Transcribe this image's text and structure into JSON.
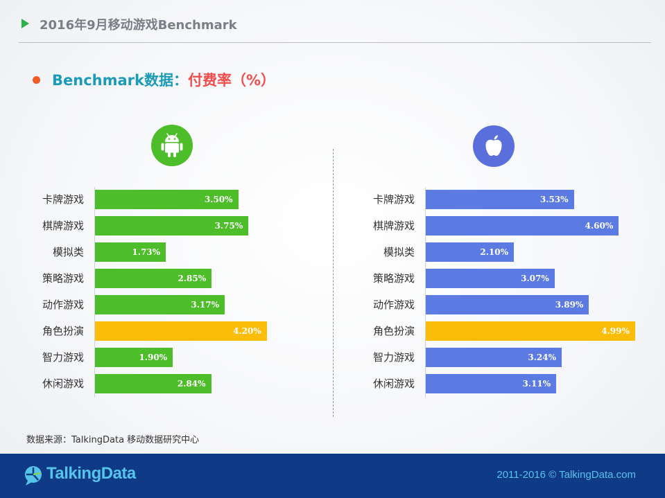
{
  "header": {
    "title": "2016年9月移动游戏Benchmark"
  },
  "subtitle": {
    "part1": "Benchmark数据：",
    "part2": "付费率（%）"
  },
  "icons": {
    "android": "android-icon",
    "apple": "apple-icon"
  },
  "chart_data": [
    {
      "type": "bar",
      "orientation": "horizontal",
      "platform_icon": "android",
      "categories": [
        "卡牌游戏",
        "棋牌游戏",
        "模拟类",
        "策略游戏",
        "动作游戏",
        "角色扮演",
        "智力游戏",
        "休闲游戏"
      ],
      "values": [
        3.5,
        3.75,
        1.73,
        2.85,
        3.17,
        4.2,
        1.9,
        2.84
      ],
      "labels": [
        "3.50%",
        "3.75%",
        "1.73%",
        "2.85%",
        "3.17%",
        "4.20%",
        "1.90%",
        "2.84%"
      ],
      "colors": {
        "default": "#4ebd2a",
        "highlight": "#fbbd08"
      },
      "highlight_index": 5
    },
    {
      "type": "bar",
      "orientation": "horizontal",
      "platform_icon": "apple",
      "categories": [
        "卡牌游戏",
        "棋牌游戏",
        "模拟类",
        "策略游戏",
        "动作游戏",
        "角色扮演",
        "智力游戏",
        "休闲游戏"
      ],
      "values": [
        3.53,
        4.6,
        2.1,
        3.07,
        3.89,
        4.99,
        3.24,
        3.11
      ],
      "labels": [
        "3.53%",
        "4.60%",
        "2.10%",
        "3.07%",
        "3.89%",
        "4.99%",
        "3.24%",
        "3.11%"
      ],
      "colors": {
        "default": "#5b7be3",
        "highlight": "#fbbd08"
      },
      "highlight_index": 5
    }
  ],
  "source": "数据来源：TalkingData 移动数据研究中心",
  "footer": {
    "logo_text": "TalkingData",
    "copyright": "2011-2016 © TalkingData.com"
  }
}
